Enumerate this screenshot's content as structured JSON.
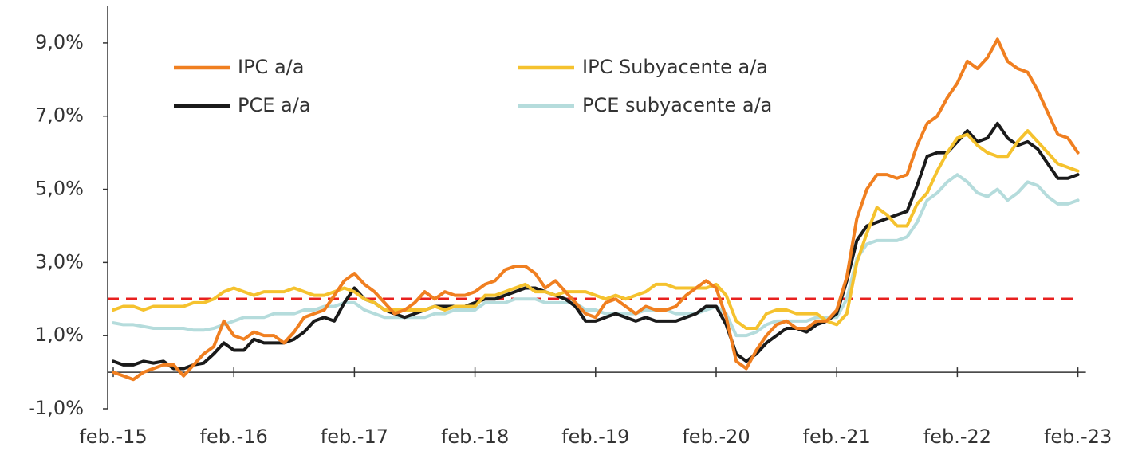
{
  "chart_data": {
    "type": "line",
    "categories": [
      "feb.-15",
      null,
      null,
      null,
      null,
      null,
      null,
      null,
      null,
      null,
      null,
      null,
      "feb.-16",
      null,
      null,
      null,
      null,
      null,
      null,
      null,
      null,
      null,
      null,
      null,
      "feb.-17",
      null,
      null,
      null,
      null,
      null,
      null,
      null,
      null,
      null,
      null,
      null,
      "feb.-18",
      null,
      null,
      null,
      null,
      null,
      null,
      null,
      null,
      null,
      null,
      null,
      "feb.-19",
      null,
      null,
      null,
      null,
      null,
      null,
      null,
      null,
      null,
      null,
      null,
      "feb.-20",
      null,
      null,
      null,
      null,
      null,
      null,
      null,
      null,
      null,
      null,
      null,
      "feb.-21",
      null,
      null,
      null,
      null,
      null,
      null,
      null,
      null,
      null,
      null,
      null,
      "feb.-22",
      null,
      null,
      null,
      null,
      null,
      null,
      null,
      null,
      null,
      null,
      null,
      "feb.-23"
    ],
    "series": [
      {
        "name": "IPC a/a",
        "color": "#f07f20",
        "values": [
          0.0,
          -0.1,
          -0.2,
          0.0,
          0.1,
          0.2,
          0.2,
          -0.1,
          0.2,
          0.5,
          0.7,
          1.4,
          1.0,
          0.9,
          1.1,
          1.0,
          1.0,
          0.8,
          1.1,
          1.5,
          1.6,
          1.7,
          2.1,
          2.5,
          2.7,
          2.4,
          2.2,
          1.9,
          1.6,
          1.7,
          1.9,
          2.2,
          2.0,
          2.2,
          2.1,
          2.1,
          2.2,
          2.4,
          2.5,
          2.8,
          2.9,
          2.9,
          2.7,
          2.3,
          2.5,
          2.2,
          1.9,
          1.6,
          1.5,
          1.9,
          2.0,
          1.8,
          1.6,
          1.8,
          1.7,
          1.7,
          1.8,
          2.1,
          2.3,
          2.5,
          2.3,
          1.5,
          0.3,
          0.1,
          0.6,
          1.0,
          1.3,
          1.4,
          1.2,
          1.2,
          1.4,
          1.4,
          1.7,
          2.6,
          4.2,
          5.0,
          5.4,
          5.4,
          5.3,
          5.4,
          6.2,
          6.8,
          7.0,
          7.5,
          7.9,
          8.5,
          8.3,
          8.6,
          9.1,
          8.5,
          8.3,
          8.2,
          7.7,
          7.1,
          6.5,
          6.4,
          6.0
        ]
      },
      {
        "name": "IPC Subyacente a/a",
        "color": "#f5c22e",
        "values": [
          1.7,
          1.8,
          1.8,
          1.7,
          1.8,
          1.8,
          1.8,
          1.8,
          1.9,
          1.9,
          2.0,
          2.2,
          2.3,
          2.2,
          2.1,
          2.2,
          2.2,
          2.2,
          2.3,
          2.2,
          2.1,
          2.1,
          2.2,
          2.3,
          2.2,
          2.0,
          1.9,
          1.7,
          1.7,
          1.7,
          1.7,
          1.7,
          1.8,
          1.7,
          1.8,
          1.8,
          1.8,
          2.1,
          2.1,
          2.2,
          2.3,
          2.4,
          2.2,
          2.2,
          2.1,
          2.2,
          2.2,
          2.2,
          2.1,
          2.0,
          2.1,
          2.0,
          2.1,
          2.2,
          2.4,
          2.4,
          2.3,
          2.3,
          2.3,
          2.3,
          2.4,
          2.1,
          1.4,
          1.2,
          1.2,
          1.6,
          1.7,
          1.7,
          1.6,
          1.6,
          1.6,
          1.4,
          1.3,
          1.6,
          3.0,
          3.8,
          4.5,
          4.3,
          4.0,
          4.0,
          4.6,
          4.9,
          5.5,
          6.0,
          6.4,
          6.5,
          6.2,
          6.0,
          5.9,
          5.9,
          6.3,
          6.6,
          6.3,
          6.0,
          5.7,
          5.6,
          5.5
        ]
      },
      {
        "name": "PCE a/a",
        "color": "#1a1a1a",
        "values": [
          0.3,
          0.2,
          0.2,
          0.3,
          0.25,
          0.3,
          0.1,
          0.1,
          0.2,
          0.25,
          0.5,
          0.8,
          0.6,
          0.6,
          0.9,
          0.8,
          0.8,
          0.8,
          0.9,
          1.1,
          1.4,
          1.5,
          1.4,
          1.9,
          2.3,
          2.0,
          1.9,
          1.7,
          1.6,
          1.5,
          1.6,
          1.7,
          1.8,
          1.8,
          1.8,
          1.8,
          1.9,
          2.0,
          2.0,
          2.1,
          2.2,
          2.3,
          2.3,
          2.2,
          2.1,
          2.0,
          1.8,
          1.4,
          1.4,
          1.5,
          1.6,
          1.5,
          1.4,
          1.5,
          1.4,
          1.4,
          1.4,
          1.5,
          1.6,
          1.8,
          1.8,
          1.3,
          0.5,
          0.3,
          0.5,
          0.8,
          1.0,
          1.2,
          1.2,
          1.1,
          1.3,
          1.4,
          1.6,
          2.5,
          3.6,
          4.0,
          4.1,
          4.2,
          4.3,
          4.4,
          5.1,
          5.9,
          6.0,
          6.0,
          6.3,
          6.6,
          6.3,
          6.4,
          6.8,
          6.4,
          6.2,
          6.3,
          6.1,
          5.7,
          5.3,
          5.3,
          5.4
        ]
      },
      {
        "name": "PCE subyacente a/a",
        "color": "#b5dcdc",
        "values": [
          1.35,
          1.3,
          1.3,
          1.25,
          1.2,
          1.2,
          1.2,
          1.2,
          1.15,
          1.15,
          1.2,
          1.3,
          1.4,
          1.5,
          1.5,
          1.5,
          1.6,
          1.6,
          1.6,
          1.7,
          1.7,
          1.8,
          1.8,
          1.9,
          1.9,
          1.7,
          1.6,
          1.5,
          1.5,
          1.5,
          1.5,
          1.5,
          1.6,
          1.6,
          1.7,
          1.7,
          1.7,
          1.9,
          1.9,
          1.9,
          2.0,
          2.0,
          2.0,
          1.9,
          1.9,
          1.9,
          1.9,
          1.7,
          1.7,
          1.6,
          1.6,
          1.6,
          1.6,
          1.7,
          1.7,
          1.7,
          1.6,
          1.6,
          1.6,
          1.7,
          1.8,
          1.6,
          1.0,
          1.0,
          1.1,
          1.3,
          1.4,
          1.4,
          1.4,
          1.4,
          1.5,
          1.5,
          1.5,
          2.0,
          3.1,
          3.5,
          3.6,
          3.6,
          3.6,
          3.7,
          4.1,
          4.7,
          4.9,
          5.2,
          5.4,
          5.2,
          4.9,
          4.8,
          5.0,
          4.7,
          4.9,
          5.2,
          5.1,
          4.8,
          4.6,
          4.6,
          4.7
        ]
      }
    ],
    "reference_line": {
      "value": 2,
      "color": "#e8201f"
    },
    "ylim": [
      -1,
      10
    ],
    "yticks": [
      {
        "value": -1,
        "label": "-1,0%"
      },
      {
        "value": 1,
        "label": "1,0%"
      },
      {
        "value": 3,
        "label": "3,0%"
      },
      {
        "value": 5,
        "label": "5,0%"
      },
      {
        "value": 7,
        "label": "7,0%"
      },
      {
        "value": 9,
        "label": "9,0%"
      }
    ],
    "legend": "upper left"
  }
}
